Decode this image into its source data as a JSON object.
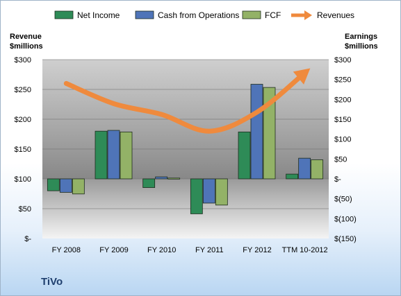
{
  "chart_data": {
    "type": "bar",
    "company": "TiVo",
    "categories": [
      "FY 2008",
      "FY 2009",
      "FY 2010",
      "FY 2011",
      "FY 2012",
      "TTM 10-2012"
    ],
    "left_axis": {
      "title_line1": "Revenue",
      "title_line2": "$millions",
      "ylim": [
        0,
        300
      ],
      "ticks": [
        0,
        50,
        100,
        150,
        200,
        250,
        300
      ],
      "tick_labels": [
        "$-",
        "$50",
        "$100",
        "$150",
        "$200",
        "$250",
        "$300"
      ]
    },
    "right_axis": {
      "title_line1": "Earnings",
      "title_line2": "$millions",
      "ylim": [
        -150,
        300
      ],
      "ticks": [
        -150,
        -100,
        -50,
        0,
        50,
        100,
        150,
        200,
        250,
        300
      ],
      "tick_labels": [
        "$(150)",
        "$(100)",
        "$(50)",
        "$-",
        "$50",
        "$100",
        "$150",
        "$200",
        "$250",
        "$300"
      ]
    },
    "series": [
      {
        "name": "Net Income",
        "axis": "right",
        "kind": "bar",
        "color": "#2e8b57",
        "values": [
          -30,
          120,
          -22,
          -88,
          118,
          12
        ]
      },
      {
        "name": "Cash from Operations",
        "axis": "right",
        "kind": "bar",
        "color": "#4f74b8",
        "values": [
          -34,
          122,
          5,
          -61,
          238,
          52
        ]
      },
      {
        "name": "FCF",
        "axis": "right",
        "kind": "bar",
        "color": "#93b267",
        "values": [
          -38,
          118,
          2,
          -66,
          230,
          48
        ]
      },
      {
        "name": "Revenues",
        "axis": "left",
        "kind": "line",
        "color": "#ef8a3d",
        "values": [
          260,
          226,
          208,
          180,
          212,
          278
        ]
      }
    ],
    "grid": true,
    "legend_position": "top"
  }
}
